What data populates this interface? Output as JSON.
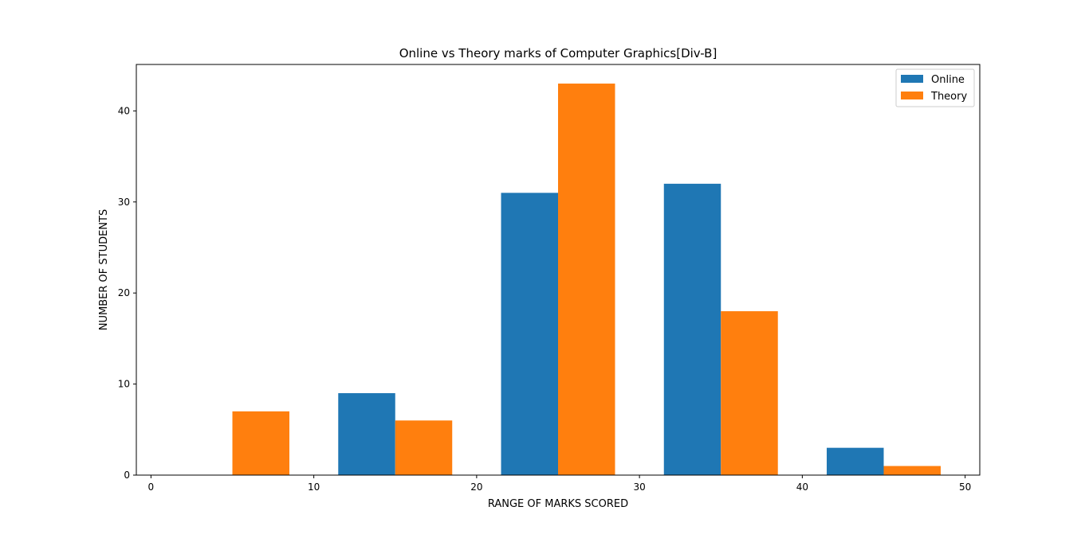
{
  "chart_data": {
    "type": "bar",
    "title": "Online vs Theory marks of Computer Graphics[Div-B]",
    "xlabel": "RANGE OF MARKS SCORED",
    "ylabel": "NUMBER OF STUDENTS",
    "xlim": [
      -0.9,
      50.9
    ],
    "ylim": [
      0,
      45.1
    ],
    "x_ticks": [
      0,
      10,
      20,
      30,
      40,
      50
    ],
    "y_ticks": [
      0,
      10,
      20,
      30,
      40
    ],
    "bin_edges": [
      5,
      15,
      25,
      35,
      45
    ],
    "bar_width": 3.5,
    "series": [
      {
        "name": "Online",
        "color": "#1f77b4",
        "values": [
          0,
          9,
          31,
          32,
          3
        ]
      },
      {
        "name": "Theory",
        "color": "#ff7f0e",
        "values": [
          7,
          6,
          43,
          18,
          1
        ]
      }
    ],
    "legend": "top-right",
    "grid": false
  }
}
